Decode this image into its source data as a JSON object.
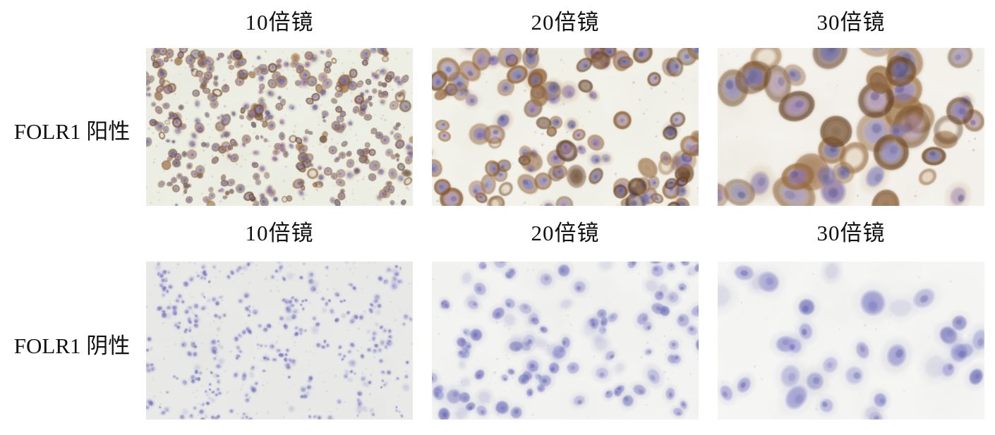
{
  "figure": {
    "description": "FOLR1 immunocytochemistry micrograph panel, 2 rows x 3 magnifications",
    "rows": [
      {
        "label": "FOLR1 阳性",
        "headers": [
          "10倍镜",
          "20倍镜",
          "30倍镜"
        ],
        "panels": [
          {
            "name": "folr1-positive-10x",
            "magnification": "10倍镜",
            "type": "positive",
            "bg": "#edefe5",
            "seed": 101,
            "count": 420,
            "rmin": 3.2,
            "rmax": 6.8
          },
          {
            "name": "folr1-positive-20x",
            "magnification": "20倍镜",
            "type": "positive",
            "bg": "#f2f2ea",
            "seed": 202,
            "count": 130,
            "rmin": 8,
            "rmax": 15
          },
          {
            "name": "folr1-positive-30x",
            "magnification": "30倍镜",
            "type": "positive",
            "bg": "#f4f2ec",
            "seed": 303,
            "count": 46,
            "rmin": 14,
            "rmax": 25
          }
        ]
      },
      {
        "label": "FOLR1 阴性",
        "headers": [
          "10倍镜",
          "20倍镜",
          "30倍镜"
        ],
        "panels": [
          {
            "name": "folr1-negative-10x",
            "magnification": "10倍镜",
            "type": "negative",
            "bg": "#e9e9e7",
            "seed": 404,
            "count": 360,
            "rmin": 2.6,
            "rmax": 5.4
          },
          {
            "name": "folr1-negative-20x",
            "magnification": "20倍镜",
            "type": "negative",
            "bg": "#f3f3f1",
            "seed": 505,
            "count": 115,
            "rmin": 7,
            "rmax": 13
          },
          {
            "name": "folr1-negative-30x",
            "magnification": "30倍镜",
            "type": "negative",
            "bg": "#f5f5f3",
            "seed": 606,
            "count": 34,
            "rmin": 13,
            "rmax": 22
          }
        ]
      }
    ]
  },
  "render": {
    "text_color": "#111111",
    "page_bg": "#ffffff",
    "positive": {
      "bg": "#eff1e8",
      "cytoplasm": [
        "#c8a77a",
        "#bb9266",
        "#d2b58e",
        "#c09a82"
      ],
      "membrane": [
        "#7a4b22",
        "#8a5a2e",
        "#603a19",
        "#946a3e",
        "#55331a"
      ],
      "nucleus": [
        "#6b68a8",
        "#7d7ab8",
        "#5a5794",
        "#8d6fa2",
        "#7a6aa8"
      ],
      "chromatin": "#4c4a88",
      "mottle": "#ded9cb",
      "speck": "#a86f92"
    },
    "negative": {
      "bg": "#eaeae8",
      "halo": "#bcbcd9",
      "nucleus": [
        "#7f7fc4",
        "#9191ce",
        "#6d6db7",
        "#a3a0d8",
        "#8484c8"
      ],
      "chromatin": "#5a5aaa",
      "mottle": "#e0e0dd",
      "speck": "#a2a2c6"
    }
  }
}
